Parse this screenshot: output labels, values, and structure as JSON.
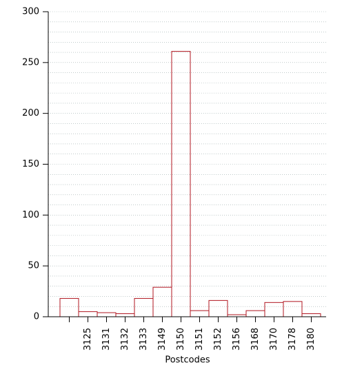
{
  "chart_data": {
    "type": "bar",
    "x_label": "Postcodes",
    "categories": [
      null,
      "3125",
      "3131",
      "3132",
      "3133",
      "3149",
      "3150",
      "3151",
      "3152",
      "3156",
      "3168",
      "3170",
      "3178",
      "3180"
    ],
    "values": [
      18,
      5,
      4,
      3,
      18,
      29,
      261,
      6,
      16,
      2,
      6,
      14,
      15,
      3
    ],
    "color": "#b0151f",
    "ylim": [
      0,
      300
    ],
    "yticks": [
      0,
      50,
      100,
      150,
      200,
      250,
      300
    ],
    "minor_yticks": [
      10,
      20,
      30,
      40,
      60,
      70,
      80,
      90,
      110,
      120,
      130,
      140,
      160,
      170,
      180,
      190,
      210,
      220,
      230,
      240,
      260,
      270,
      280,
      290
    ],
    "grid": true
  }
}
